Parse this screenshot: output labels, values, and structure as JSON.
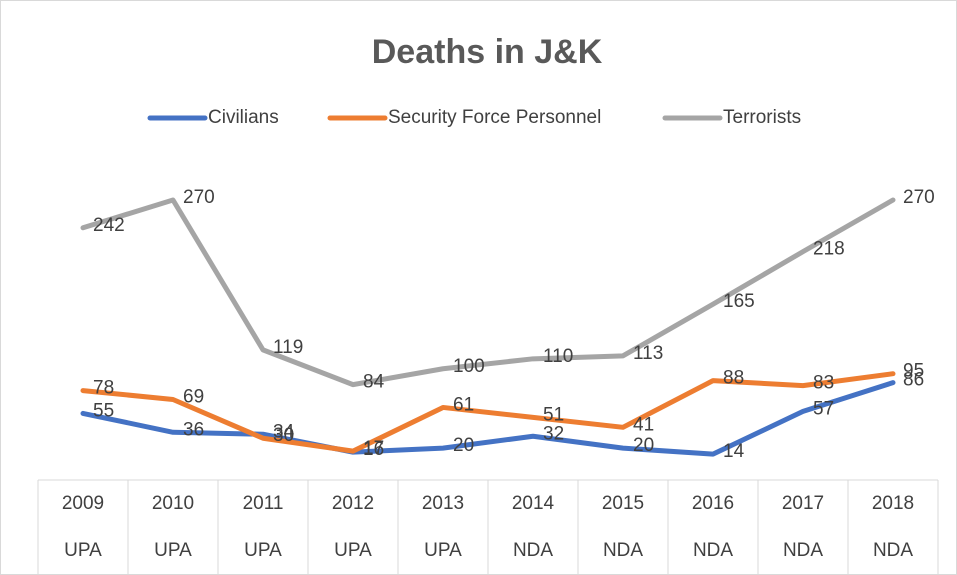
{
  "chart_data": {
    "type": "line",
    "title": "Deaths in J&K",
    "categories": [
      "2009",
      "2010",
      "2011",
      "2012",
      "2013",
      "2014",
      "2015",
      "2016",
      "2017",
      "2018"
    ],
    "category_groups": [
      "UPA",
      "UPA",
      "UPA",
      "UPA",
      "UPA",
      "NDA",
      "NDA",
      "NDA",
      "NDA",
      "NDA"
    ],
    "series": [
      {
        "name": "Civilians",
        "color": "#4472c4",
        "values": [
          55,
          36,
          34,
          16,
          20,
          32,
          20,
          14,
          57,
          86
        ]
      },
      {
        "name": "Security Force Personnel",
        "color": "#ed7d31",
        "values": [
          78,
          69,
          30,
          17,
          61,
          51,
          41,
          88,
          83,
          95
        ]
      },
      {
        "name": "Terrorists",
        "color": "#a5a5a5",
        "values": [
          242,
          270,
          119,
          84,
          100,
          110,
          113,
          165,
          218,
          270
        ]
      }
    ],
    "legend": "top",
    "grid": false
  }
}
